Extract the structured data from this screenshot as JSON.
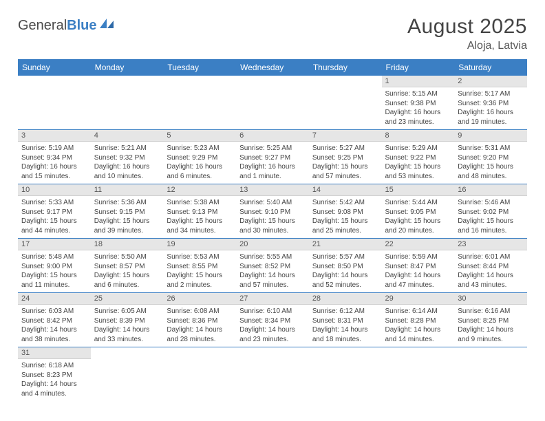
{
  "logo": {
    "word1": "General",
    "word2": "Blue"
  },
  "title": "August 2025",
  "location": "Aloja, Latvia",
  "colors": {
    "header_bg": "#3b7fc4",
    "header_text": "#ffffff",
    "daynum_bg": "#e6e6e6",
    "row_divider": "#3b7fc4",
    "body_text": "#444444",
    "page_bg": "#ffffff"
  },
  "day_headers": [
    "Sunday",
    "Monday",
    "Tuesday",
    "Wednesday",
    "Thursday",
    "Friday",
    "Saturday"
  ],
  "weeks": [
    [
      null,
      null,
      null,
      null,
      null,
      {
        "n": "1",
        "sr": "Sunrise: 5:15 AM",
        "ss": "Sunset: 9:38 PM",
        "dl": "Daylight: 16 hours and 23 minutes."
      },
      {
        "n": "2",
        "sr": "Sunrise: 5:17 AM",
        "ss": "Sunset: 9:36 PM",
        "dl": "Daylight: 16 hours and 19 minutes."
      }
    ],
    [
      {
        "n": "3",
        "sr": "Sunrise: 5:19 AM",
        "ss": "Sunset: 9:34 PM",
        "dl": "Daylight: 16 hours and 15 minutes."
      },
      {
        "n": "4",
        "sr": "Sunrise: 5:21 AM",
        "ss": "Sunset: 9:32 PM",
        "dl": "Daylight: 16 hours and 10 minutes."
      },
      {
        "n": "5",
        "sr": "Sunrise: 5:23 AM",
        "ss": "Sunset: 9:29 PM",
        "dl": "Daylight: 16 hours and 6 minutes."
      },
      {
        "n": "6",
        "sr": "Sunrise: 5:25 AM",
        "ss": "Sunset: 9:27 PM",
        "dl": "Daylight: 16 hours and 1 minute."
      },
      {
        "n": "7",
        "sr": "Sunrise: 5:27 AM",
        "ss": "Sunset: 9:25 PM",
        "dl": "Daylight: 15 hours and 57 minutes."
      },
      {
        "n": "8",
        "sr": "Sunrise: 5:29 AM",
        "ss": "Sunset: 9:22 PM",
        "dl": "Daylight: 15 hours and 53 minutes."
      },
      {
        "n": "9",
        "sr": "Sunrise: 5:31 AM",
        "ss": "Sunset: 9:20 PM",
        "dl": "Daylight: 15 hours and 48 minutes."
      }
    ],
    [
      {
        "n": "10",
        "sr": "Sunrise: 5:33 AM",
        "ss": "Sunset: 9:17 PM",
        "dl": "Daylight: 15 hours and 44 minutes."
      },
      {
        "n": "11",
        "sr": "Sunrise: 5:36 AM",
        "ss": "Sunset: 9:15 PM",
        "dl": "Daylight: 15 hours and 39 minutes."
      },
      {
        "n": "12",
        "sr": "Sunrise: 5:38 AM",
        "ss": "Sunset: 9:13 PM",
        "dl": "Daylight: 15 hours and 34 minutes."
      },
      {
        "n": "13",
        "sr": "Sunrise: 5:40 AM",
        "ss": "Sunset: 9:10 PM",
        "dl": "Daylight: 15 hours and 30 minutes."
      },
      {
        "n": "14",
        "sr": "Sunrise: 5:42 AM",
        "ss": "Sunset: 9:08 PM",
        "dl": "Daylight: 15 hours and 25 minutes."
      },
      {
        "n": "15",
        "sr": "Sunrise: 5:44 AM",
        "ss": "Sunset: 9:05 PM",
        "dl": "Daylight: 15 hours and 20 minutes."
      },
      {
        "n": "16",
        "sr": "Sunrise: 5:46 AM",
        "ss": "Sunset: 9:02 PM",
        "dl": "Daylight: 15 hours and 16 minutes."
      }
    ],
    [
      {
        "n": "17",
        "sr": "Sunrise: 5:48 AM",
        "ss": "Sunset: 9:00 PM",
        "dl": "Daylight: 15 hours and 11 minutes."
      },
      {
        "n": "18",
        "sr": "Sunrise: 5:50 AM",
        "ss": "Sunset: 8:57 PM",
        "dl": "Daylight: 15 hours and 6 minutes."
      },
      {
        "n": "19",
        "sr": "Sunrise: 5:53 AM",
        "ss": "Sunset: 8:55 PM",
        "dl": "Daylight: 15 hours and 2 minutes."
      },
      {
        "n": "20",
        "sr": "Sunrise: 5:55 AM",
        "ss": "Sunset: 8:52 PM",
        "dl": "Daylight: 14 hours and 57 minutes."
      },
      {
        "n": "21",
        "sr": "Sunrise: 5:57 AM",
        "ss": "Sunset: 8:50 PM",
        "dl": "Daylight: 14 hours and 52 minutes."
      },
      {
        "n": "22",
        "sr": "Sunrise: 5:59 AM",
        "ss": "Sunset: 8:47 PM",
        "dl": "Daylight: 14 hours and 47 minutes."
      },
      {
        "n": "23",
        "sr": "Sunrise: 6:01 AM",
        "ss": "Sunset: 8:44 PM",
        "dl": "Daylight: 14 hours and 43 minutes."
      }
    ],
    [
      {
        "n": "24",
        "sr": "Sunrise: 6:03 AM",
        "ss": "Sunset: 8:42 PM",
        "dl": "Daylight: 14 hours and 38 minutes."
      },
      {
        "n": "25",
        "sr": "Sunrise: 6:05 AM",
        "ss": "Sunset: 8:39 PM",
        "dl": "Daylight: 14 hours and 33 minutes."
      },
      {
        "n": "26",
        "sr": "Sunrise: 6:08 AM",
        "ss": "Sunset: 8:36 PM",
        "dl": "Daylight: 14 hours and 28 minutes."
      },
      {
        "n": "27",
        "sr": "Sunrise: 6:10 AM",
        "ss": "Sunset: 8:34 PM",
        "dl": "Daylight: 14 hours and 23 minutes."
      },
      {
        "n": "28",
        "sr": "Sunrise: 6:12 AM",
        "ss": "Sunset: 8:31 PM",
        "dl": "Daylight: 14 hours and 18 minutes."
      },
      {
        "n": "29",
        "sr": "Sunrise: 6:14 AM",
        "ss": "Sunset: 8:28 PM",
        "dl": "Daylight: 14 hours and 14 minutes."
      },
      {
        "n": "30",
        "sr": "Sunrise: 6:16 AM",
        "ss": "Sunset: 8:25 PM",
        "dl": "Daylight: 14 hours and 9 minutes."
      }
    ],
    [
      {
        "n": "31",
        "sr": "Sunrise: 6:18 AM",
        "ss": "Sunset: 8:23 PM",
        "dl": "Daylight: 14 hours and 4 minutes."
      },
      null,
      null,
      null,
      null,
      null,
      null
    ]
  ]
}
